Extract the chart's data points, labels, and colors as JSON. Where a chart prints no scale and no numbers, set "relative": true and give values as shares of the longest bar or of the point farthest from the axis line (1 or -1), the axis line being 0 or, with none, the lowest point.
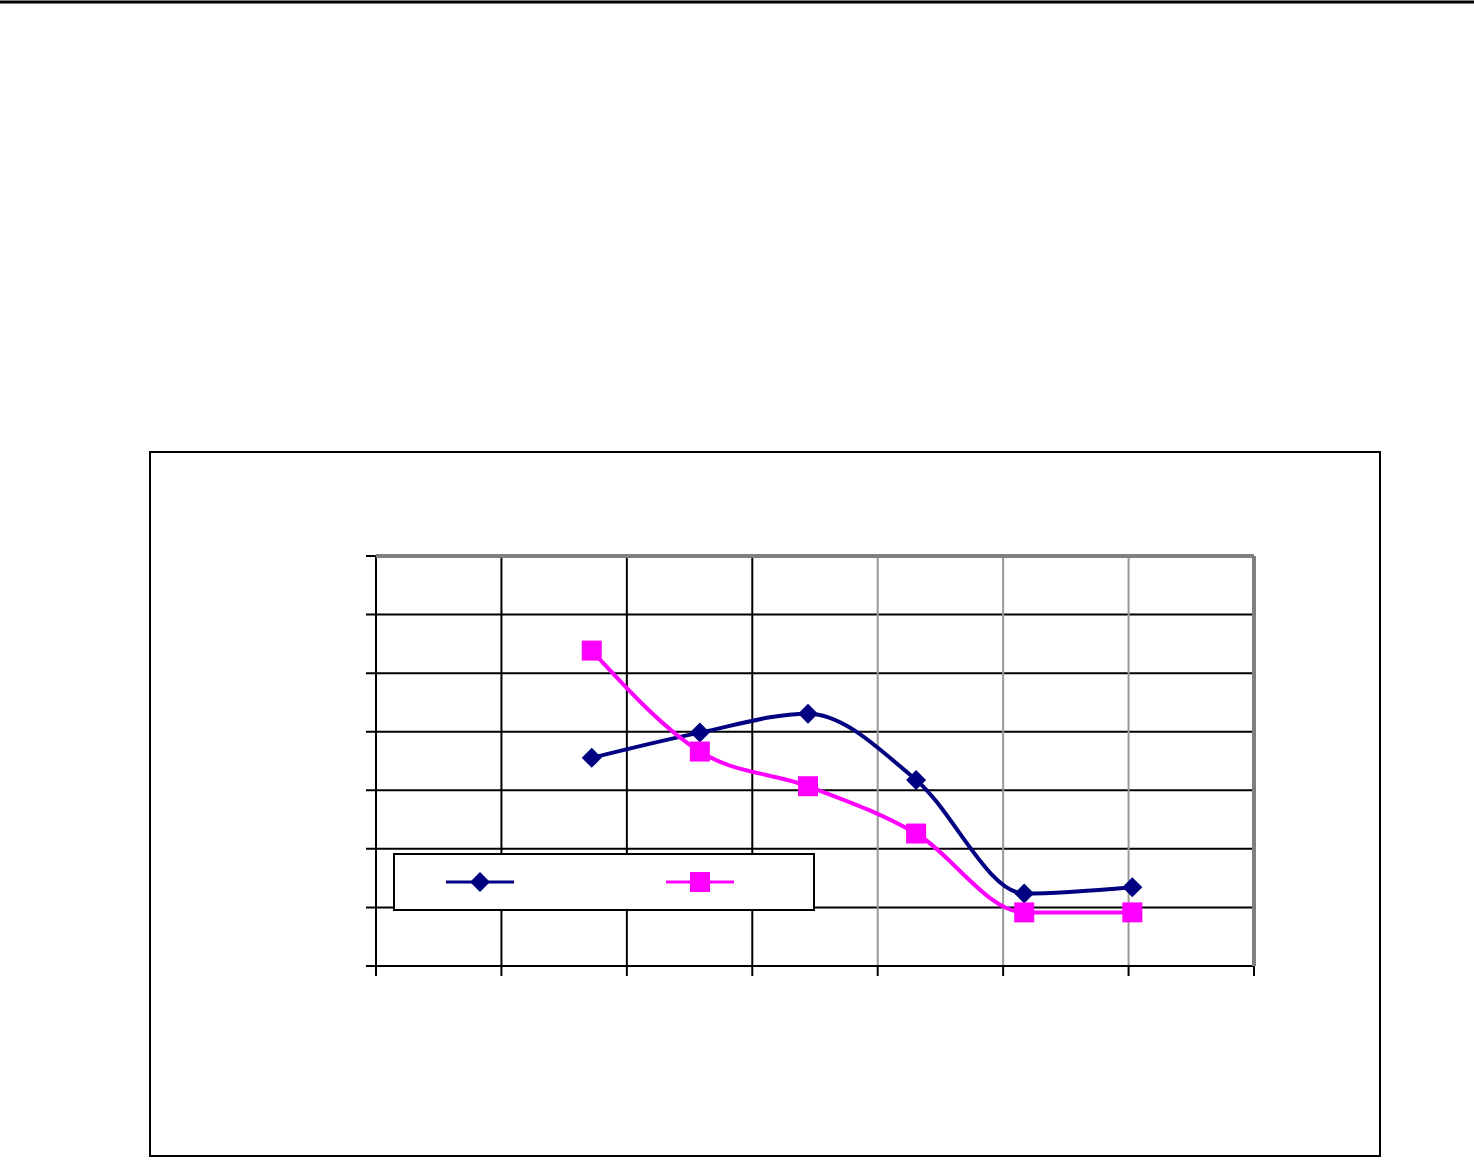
{
  "chart_data": {
    "type": "line",
    "relative": true,
    "categories": [
      null,
      null,
      null,
      null,
      null,
      null
    ],
    "grid": true,
    "line_style": "solid",
    "series": [
      {
        "color": "#000080",
        "marker": "diamond",
        "values": [
          0.66,
          0.74,
          0.8,
          0.59,
          0.23,
          0.25
        ]
      },
      {
        "color": "#ff00ff",
        "marker": "square",
        "values": [
          1,
          0.68,
          0.57,
          0.42,
          0.17,
          0.17
        ]
      }
    ]
  }
}
